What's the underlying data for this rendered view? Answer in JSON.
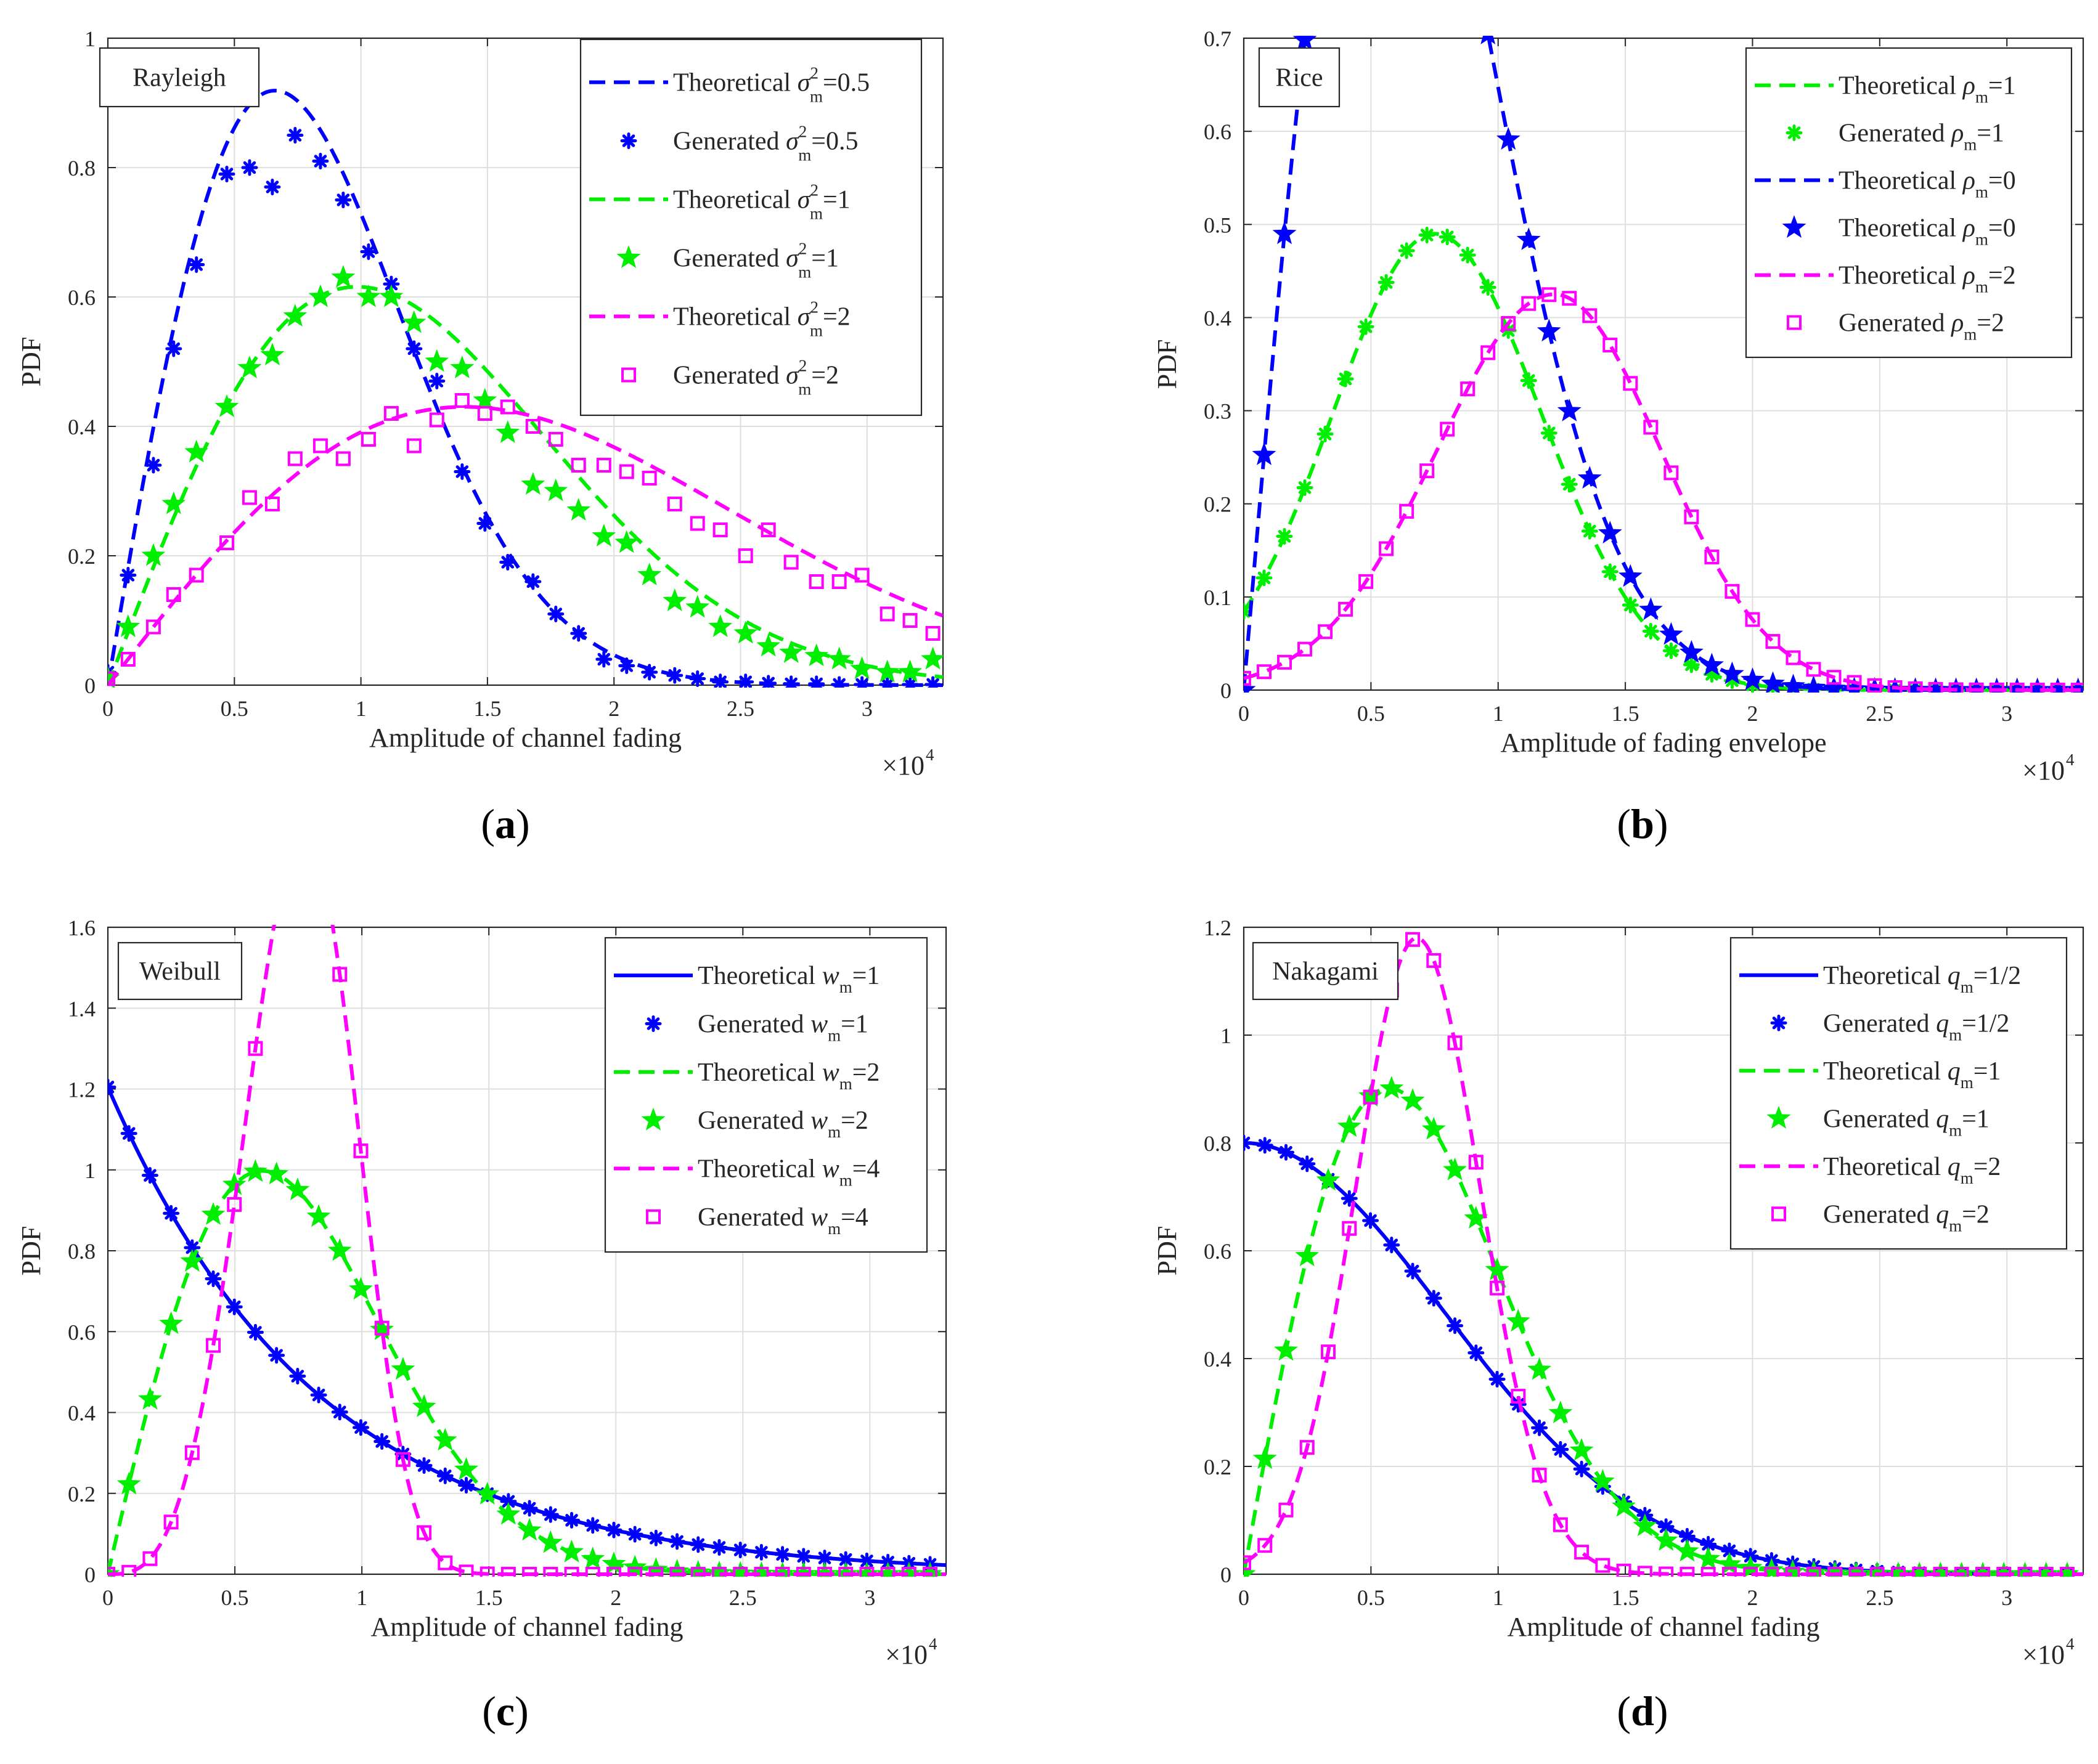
{
  "figure": {
    "panels": [
      {
        "caption": "a",
        "tag": "Rayleigh",
        "xlabel": "Amplitude of channel fading",
        "ylabel": "PDF",
        "exponent_label": "×10",
        "exponent_power": "4",
        "legend_entries": [
          {
            "kind": "Theoretical",
            "symbol": "σ",
            "sup": "2",
            "sub": "m",
            "value": "=0.5"
          },
          {
            "kind": "Generated",
            "symbol": "σ",
            "sup": "2",
            "sub": "m",
            "value": "=0.5"
          },
          {
            "kind": "Theoretical",
            "symbol": "σ",
            "sup": "2",
            "sub": "m",
            "value": "=1"
          },
          {
            "kind": "Generated",
            "symbol": "σ",
            "sup": "2",
            "sub": "m",
            "value": "=1"
          },
          {
            "kind": "Theoretical",
            "symbol": "σ",
            "sup": "2",
            "sub": "m",
            "value": "=2"
          },
          {
            "kind": "Generated",
            "symbol": "σ",
            "sup": "2",
            "sub": "m",
            "value": "=2"
          }
        ]
      },
      {
        "caption": "b",
        "tag": "Rice",
        "xlabel": "Amplitude of fading envelope",
        "ylabel": "PDF",
        "exponent_label": "×10",
        "exponent_power": "4",
        "legend_entries": [
          {
            "kind": "Theoretical",
            "symbol": "ρ",
            "sup": "",
            "sub": "m",
            "value": "=1"
          },
          {
            "kind": "Generated",
            "symbol": "ρ",
            "sup": "",
            "sub": "m",
            "value": "=1"
          },
          {
            "kind": "Theoretical",
            "symbol": "ρ",
            "sup": "",
            "sub": "m",
            "value": "=0"
          },
          {
            "kind": "Theoretical",
            "symbol": "ρ",
            "sup": "",
            "sub": "m",
            "value": "=0"
          },
          {
            "kind": "Theoretical",
            "symbol": "ρ",
            "sup": "",
            "sub": "m",
            "value": "=2"
          },
          {
            "kind": "Generated",
            "symbol": "ρ",
            "sup": "",
            "sub": "m",
            "value": "=2"
          }
        ]
      },
      {
        "caption": "c",
        "tag": "Weibull",
        "xlabel": "Amplitude of channel fading",
        "ylabel": "PDF",
        "exponent_label": "×10",
        "exponent_power": "4",
        "legend_entries": [
          {
            "kind": "Theoretical",
            "symbol": "w",
            "sup": "",
            "sub": "m",
            "value": "=1"
          },
          {
            "kind": "Generated",
            "symbol": "w",
            "sup": "",
            "sub": "m",
            "value": "=1"
          },
          {
            "kind": "Theoretical",
            "symbol": "w",
            "sup": "",
            "sub": "m",
            "value": "=2"
          },
          {
            "kind": "Generated",
            "symbol": "w",
            "sup": "",
            "sub": "m",
            "value": "=2"
          },
          {
            "kind": "Theoretical",
            "symbol": "w",
            "sup": "",
            "sub": "m",
            "value": "=4"
          },
          {
            "kind": "Generated",
            "symbol": "w",
            "sup": "",
            "sub": "m",
            "value": "=4"
          }
        ]
      },
      {
        "caption": "d",
        "tag": "Nakagami",
        "xlabel": "Amplitude of channel fading",
        "ylabel": "PDF",
        "exponent_label": "×10",
        "exponent_power": "4",
        "legend_entries": [
          {
            "kind": "Theoretical",
            "symbol": "q",
            "sup": "",
            "sub": "m",
            "value": "=1/2"
          },
          {
            "kind": "Generated",
            "symbol": "q",
            "sup": "",
            "sub": "m",
            "value": "=1/2"
          },
          {
            "kind": "Theoretical",
            "symbol": "q",
            "sup": "",
            "sub": "m",
            "value": "=1"
          },
          {
            "kind": "Generated",
            "symbol": "q",
            "sup": "",
            "sub": "m",
            "value": "=1"
          },
          {
            "kind": "Theoretical",
            "symbol": "q",
            "sup": "",
            "sub": "m",
            "value": "=2"
          },
          {
            "kind": "Generated",
            "symbol": "q",
            "sup": "",
            "sub": "m",
            "value": "=2"
          }
        ]
      }
    ]
  },
  "chart_data": [
    {
      "type": "line",
      "panel": "a",
      "title": "Rayleigh",
      "xlabel": "Amplitude of channel fading",
      "ylabel": "PDF",
      "x_scale": "×10^4",
      "xlim": [
        0,
        3.3
      ],
      "ylim": [
        0,
        1
      ],
      "xticks": [
        "0",
        "0.5",
        "1",
        "1.5",
        "2",
        "2.5",
        "3"
      ],
      "xtick_values": [
        0,
        0.5,
        1,
        1.5,
        2,
        2.5,
        3
      ],
      "yticks": [
        "0",
        "0.2",
        "0.4",
        "0.6",
        "0.8",
        "1"
      ],
      "ytick_values": [
        0,
        0.2,
        0.4,
        0.6,
        0.8,
        1
      ],
      "grid": true,
      "legend_position": "top-right",
      "series": [
        {
          "name": "Theoretical σm²=0.5",
          "style": "dashed",
          "color": "#0000ff",
          "marker": "none",
          "dist": "rayleigh",
          "param": 0.66
        },
        {
          "name": "Generated σm²=0.5",
          "style": "markers",
          "color": "#0000ff",
          "marker": "asterisk",
          "x": [
            0,
            0.08,
            0.18,
            0.26,
            0.35,
            0.47,
            0.56,
            0.65,
            0.74,
            0.84,
            0.93,
            1.03,
            1.12,
            1.21,
            1.3,
            1.4,
            1.49,
            1.58,
            1.68,
            1.77,
            1.86,
            1.96,
            2.05,
            2.14,
            2.24,
            2.33,
            2.42,
            2.52,
            2.61,
            2.7,
            2.8,
            2.89,
            2.98,
            3.08,
            3.17,
            3.26
          ],
          "y": [
            0.02,
            0.17,
            0.34,
            0.52,
            0.65,
            0.79,
            0.8,
            0.77,
            0.85,
            0.81,
            0.75,
            0.67,
            0.62,
            0.52,
            0.47,
            0.33,
            0.25,
            0.19,
            0.16,
            0.11,
            0.08,
            0.04,
            0.03,
            0.02,
            0.015,
            0.01,
            0.005,
            0.005,
            0.003,
            0.002,
            0.002,
            0.001,
            0.001,
            0.001,
            0.001,
            0.001
          ]
        },
        {
          "name": "Theoretical σm²=1",
          "style": "dashed",
          "color": "#00ee00",
          "marker": "none",
          "dist": "rayleigh",
          "param": 0.985
        },
        {
          "name": "Generated σm²=1",
          "style": "markers",
          "color": "#00ee00",
          "marker": "star",
          "x": [
            0,
            0.08,
            0.18,
            0.26,
            0.35,
            0.47,
            0.56,
            0.65,
            0.74,
            0.84,
            0.93,
            1.03,
            1.12,
            1.21,
            1.3,
            1.4,
            1.49,
            1.58,
            1.68,
            1.77,
            1.86,
            1.96,
            2.05,
            2.14,
            2.24,
            2.33,
            2.42,
            2.52,
            2.61,
            2.7,
            2.8,
            2.89,
            2.98,
            3.08,
            3.17,
            3.26
          ],
          "y": [
            0.01,
            0.09,
            0.2,
            0.28,
            0.36,
            0.43,
            0.49,
            0.51,
            0.57,
            0.6,
            0.63,
            0.6,
            0.6,
            0.56,
            0.5,
            0.49,
            0.44,
            0.39,
            0.31,
            0.3,
            0.27,
            0.23,
            0.22,
            0.17,
            0.13,
            0.12,
            0.09,
            0.08,
            0.06,
            0.05,
            0.045,
            0.04,
            0.025,
            0.02,
            0.02,
            0.04
          ]
        },
        {
          "name": "Theoretical σm²=2",
          "style": "dashed",
          "color": "#ff00ff",
          "marker": "none",
          "dist": "rayleigh",
          "param": 1.41
        },
        {
          "name": "Generated σm²=2",
          "style": "markers",
          "color": "#ff00ff",
          "marker": "square",
          "x": [
            0,
            0.08,
            0.18,
            0.26,
            0.35,
            0.47,
            0.56,
            0.65,
            0.74,
            0.84,
            0.93,
            1.03,
            1.12,
            1.21,
            1.3,
            1.4,
            1.49,
            1.58,
            1.68,
            1.77,
            1.86,
            1.96,
            2.05,
            2.14,
            2.24,
            2.33,
            2.42,
            2.52,
            2.61,
            2.7,
            2.8,
            2.89,
            2.98,
            3.08,
            3.17,
            3.26
          ],
          "y": [
            0.01,
            0.04,
            0.09,
            0.14,
            0.17,
            0.22,
            0.29,
            0.28,
            0.35,
            0.37,
            0.35,
            0.38,
            0.42,
            0.37,
            0.41,
            0.44,
            0.42,
            0.43,
            0.4,
            0.38,
            0.34,
            0.34,
            0.33,
            0.32,
            0.28,
            0.25,
            0.24,
            0.2,
            0.24,
            0.19,
            0.16,
            0.16,
            0.17,
            0.11,
            0.1,
            0.08
          ]
        }
      ]
    },
    {
      "type": "line",
      "panel": "b",
      "title": "Rice",
      "xlabel": "Amplitude of fading envelope",
      "ylabel": "PDF",
      "x_scale": "×10^4",
      "xlim": [
        0,
        3.3
      ],
      "ylim": [
        0,
        0.7
      ],
      "xticks": [
        "0",
        "0.5",
        "1",
        "1.5",
        "2",
        "2.5",
        "3"
      ],
      "xtick_values": [
        0,
        0.5,
        1,
        1.5,
        2,
        2.5,
        3
      ],
      "yticks": [
        "0",
        "0.1",
        "0.2",
        "0.3",
        "0.4",
        "0.5",
        "0.6",
        "0.7"
      ],
      "ytick_values": [
        0,
        0.1,
        0.2,
        0.3,
        0.4,
        0.5,
        0.6,
        0.7
      ],
      "grid": true,
      "legend_position": "top-right",
      "series": [
        {
          "name": "Theoretical ρm=1",
          "style": "dashed",
          "color": "#00ee00",
          "marker": "none",
          "dist": "gauss",
          "peak": 0.49,
          "mode": 0.75,
          "left": 0.4,
          "right": 0.42
        },
        {
          "name": "Generated ρm=1",
          "style": "markers",
          "color": "#00ee00",
          "marker": "asterisk",
          "dist": "gauss",
          "peak": 0.49,
          "mode": 0.75,
          "left": 0.4,
          "right": 0.42,
          "step": 0.08
        },
        {
          "name": "Theoretical ρm=0",
          "style": "dashed",
          "color": "#0000ff",
          "marker": "none",
          "dist": "rayleigh",
          "param": 0.56
        },
        {
          "name": "Theoretical ρm=0",
          "style": "markers",
          "color": "#0000ff",
          "marker": "star",
          "dist": "rayleigh",
          "param": 0.56,
          "step": 0.08
        },
        {
          "name": "Theoretical ρm=2",
          "style": "dashed",
          "color": "#ff00ff",
          "marker": "none",
          "dist": "gauss",
          "peak": 0.425,
          "mode": 1.22,
          "left": 0.46,
          "right": 0.42
        },
        {
          "name": "Generated ρm=2",
          "style": "markers",
          "color": "#ff00ff",
          "marker": "square",
          "dist": "gauss",
          "peak": 0.425,
          "mode": 1.22,
          "left": 0.46,
          "right": 0.42,
          "step": 0.08
        }
      ]
    },
    {
      "type": "line",
      "panel": "c",
      "title": "Weibull",
      "xlabel": "Amplitude of channel fading",
      "ylabel": "PDF",
      "x_scale": "×10^4",
      "xlim": [
        0,
        3.3
      ],
      "ylim": [
        0,
        1.6
      ],
      "xticks": [
        "0",
        "0.5",
        "1",
        "1.5",
        "2",
        "2.5",
        "3"
      ],
      "xtick_values": [
        0,
        0.5,
        1,
        1.5,
        2,
        2.5,
        3
      ],
      "yticks": [
        "0",
        "0.2",
        "0.4",
        "0.6",
        "0.8",
        "1",
        "1.2",
        "1.4",
        "1.6"
      ],
      "ytick_values": [
        0,
        0.2,
        0.4,
        0.6,
        0.8,
        1,
        1.2,
        1.4,
        1.6
      ],
      "grid": true,
      "legend_position": "top-right",
      "series": [
        {
          "name": "Theoretical wm=1",
          "style": "solid",
          "color": "#0000ff",
          "marker": "none",
          "dist": "weibull",
          "k": 1,
          "lambda": 0.83
        },
        {
          "name": "Generated wm=1",
          "style": "markers",
          "color": "#0000ff",
          "marker": "asterisk",
          "dist": "weibull",
          "k": 1,
          "lambda": 0.83,
          "step": 0.083
        },
        {
          "name": "Theoretical wm=2",
          "style": "dashed",
          "color": "#00ee00",
          "marker": "none",
          "dist": "weibull",
          "k": 2,
          "lambda": 0.86
        },
        {
          "name": "Generated wm=2",
          "style": "markers",
          "color": "#00ee00",
          "marker": "star",
          "dist": "weibull",
          "k": 2,
          "lambda": 0.86,
          "step": 0.083
        },
        {
          "name": "Theoretical wm=4",
          "style": "dashed",
          "color": "#ff00ff",
          "marker": "none",
          "dist": "weibull",
          "k": 4,
          "lambda": 0.83
        },
        {
          "name": "Generated wm=4",
          "style": "markers",
          "color": "#ff00ff",
          "marker": "square",
          "dist": "weibull",
          "k": 4,
          "lambda": 0.83,
          "step": 0.083
        }
      ]
    },
    {
      "type": "line",
      "panel": "d",
      "title": "Nakagami",
      "xlabel": "Amplitude of channel fading",
      "ylabel": "PDF",
      "x_scale": "×10^4",
      "xlim": [
        0,
        3.3
      ],
      "ylim": [
        0,
        1.2
      ],
      "xticks": [
        "0",
        "0.5",
        "1",
        "1.5",
        "2",
        "2.5",
        "3"
      ],
      "xtick_values": [
        0,
        0.5,
        1,
        1.5,
        2,
        2.5,
        3
      ],
      "yticks": [
        "0",
        "0.2",
        "0.4",
        "0.6",
        "0.8",
        "1",
        "1.2"
      ],
      "ytick_values": [
        0,
        0.2,
        0.4,
        0.6,
        0.8,
        1,
        1.2
      ],
      "grid": true,
      "legend_position": "top-right",
      "series": [
        {
          "name": "Theoretical qm=1/2",
          "style": "solid",
          "color": "#0000ff",
          "marker": "none",
          "dist": "halfgauss",
          "peak": 0.8,
          "sigma": 1.0
        },
        {
          "name": "Generated qm=1/2",
          "style": "markers",
          "color": "#0000ff",
          "marker": "asterisk",
          "dist": "halfgauss",
          "peak": 0.8,
          "sigma": 1.0,
          "step": 0.083
        },
        {
          "name": "Theoretical qm=1",
          "style": "dashed",
          "color": "#00ee00",
          "marker": "none",
          "dist": "rayleigh",
          "param": 0.57,
          "scale": 0.847
        },
        {
          "name": "Generated qm=1",
          "style": "markers",
          "color": "#00ee00",
          "marker": "star",
          "dist": "rayleigh",
          "param": 0.57,
          "scale": 0.847,
          "step": 0.083
        },
        {
          "name": "Theoretical qm=2",
          "style": "dashed",
          "color": "#ff00ff",
          "marker": "none",
          "dist": "gauss",
          "peak": 1.18,
          "mode": 0.68,
          "left": 0.24,
          "right": 0.25
        },
        {
          "name": "Generated qm=2",
          "style": "markers",
          "color": "#ff00ff",
          "marker": "square",
          "dist": "gauss",
          "peak": 1.18,
          "mode": 0.68,
          "left": 0.24,
          "right": 0.25,
          "step": 0.083
        }
      ]
    }
  ]
}
